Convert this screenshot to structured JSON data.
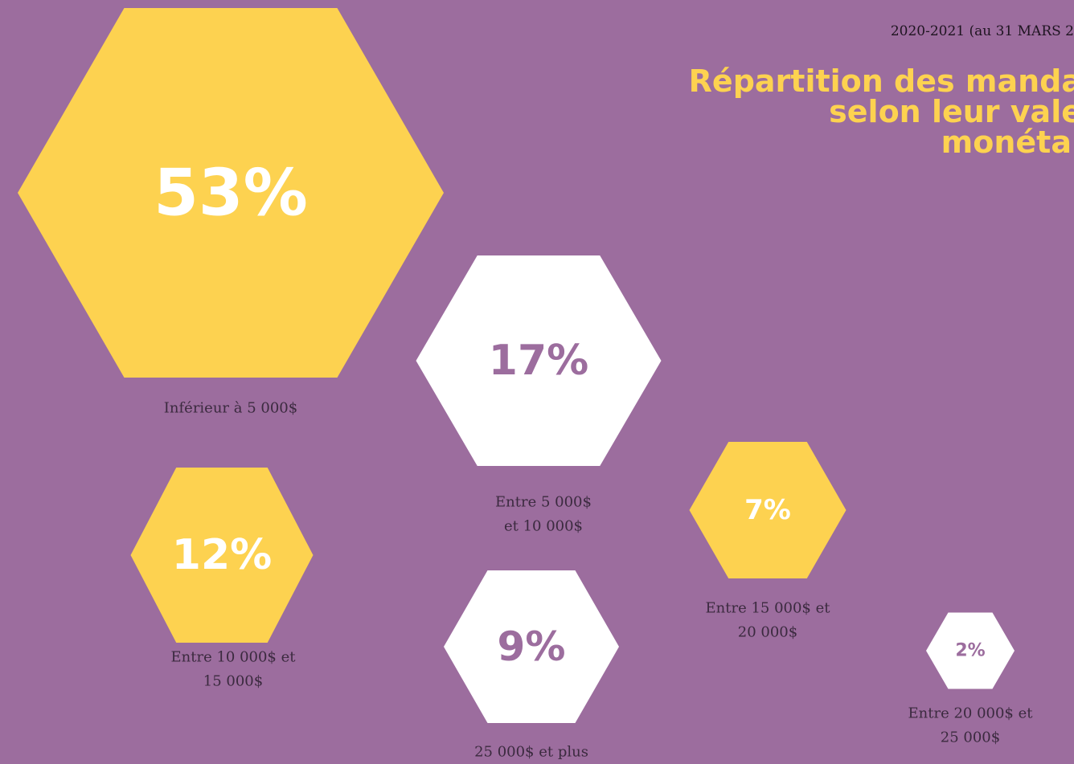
{
  "header": {
    "period": "2020-2021 (au 31 MARS 2",
    "title_lines": [
      "Répartition des manda",
      "selon leur vale",
      "monétai"
    ]
  },
  "items": [
    {
      "value": "53%",
      "label_lines": [
        "Inférieur à 5 000$"
      ],
      "color": "#fdd250",
      "text_color": "#ffffff"
    },
    {
      "value": "17%",
      "label_lines": [
        "Entre 5 000$",
        "et 10 000$"
      ],
      "color": "#ffffff",
      "text_color": "#9c6d9e"
    },
    {
      "value": "12%",
      "label_lines": [
        "Entre 10 000$ et",
        "15 000$"
      ],
      "color": "#fdd250",
      "text_color": "#ffffff"
    },
    {
      "value": "7%",
      "label_lines": [
        "Entre 15 000$ et",
        "20 000$"
      ],
      "color": "#fdd250",
      "text_color": "#ffffff"
    },
    {
      "value": "9%",
      "label_lines": [
        "25 000$ et plus"
      ],
      "color": "#ffffff",
      "text_color": "#9c6d9e"
    },
    {
      "value": "2%",
      "label_lines": [
        "Entre 20 000$ et",
        "25 000$"
      ],
      "color": "#ffffff",
      "text_color": "#9c6d9e"
    }
  ]
}
